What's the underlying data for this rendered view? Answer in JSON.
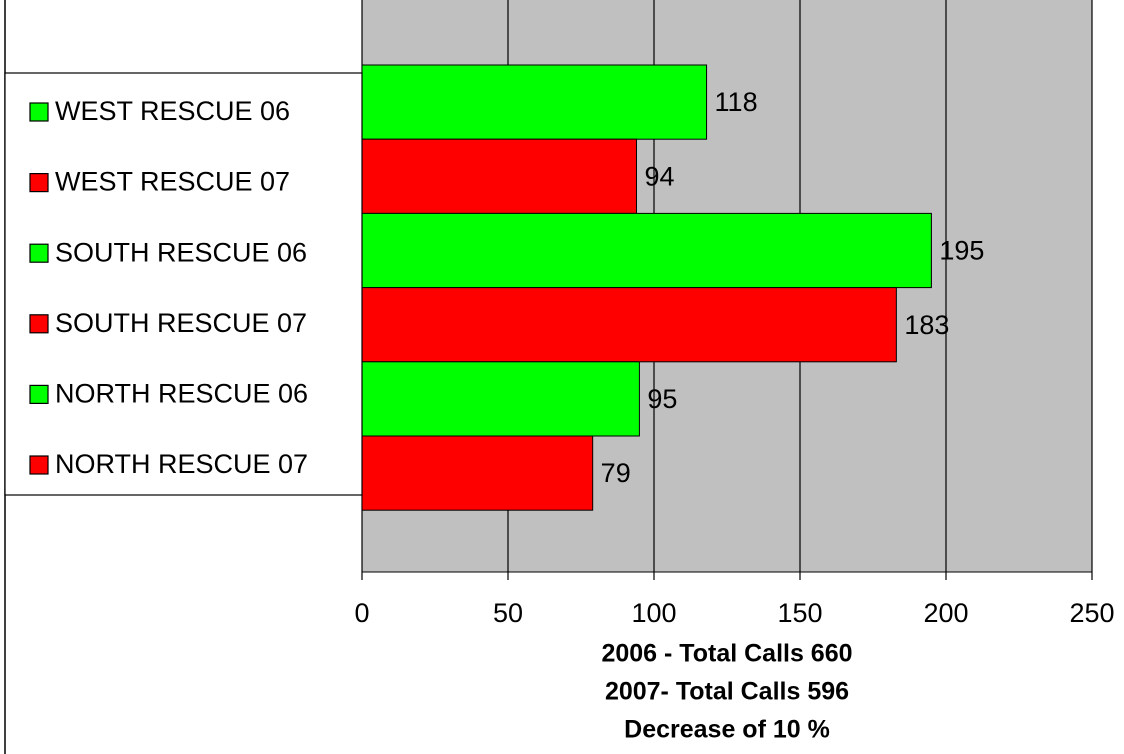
{
  "chart_data": {
    "type": "barh",
    "categories": [
      "WEST RESCUE 06",
      "WEST RESCUE 07",
      "SOUTH RESCUE 06",
      "SOUTH RESCUE 07",
      "NORTH RESCUE 06",
      "NORTH RESCUE 07"
    ],
    "values": [
      118,
      94,
      195,
      183,
      95,
      79
    ],
    "colors": [
      "#00ff00",
      "#ff0000",
      "#00ff00",
      "#ff0000",
      "#00ff00",
      "#ff0000"
    ],
    "xlim": [
      0,
      250
    ],
    "xticks": [
      0,
      50,
      100,
      150,
      200,
      250
    ],
    "grid": true,
    "xlabel": [
      "2006 - Total Calls 660",
      "2007- Total Calls 596",
      "Decrease of 10 %"
    ],
    "legend": "left"
  }
}
